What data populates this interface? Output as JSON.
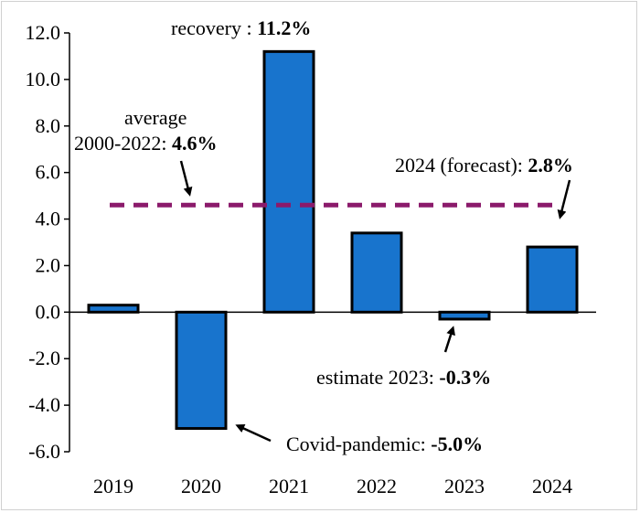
{
  "chart_data": {
    "type": "bar",
    "categories": [
      "2019",
      "2020",
      "2021",
      "2022",
      "2023",
      "2024"
    ],
    "values": [
      0.3,
      -5.0,
      11.2,
      3.4,
      -0.3,
      2.8
    ],
    "ylim": [
      -6.0,
      12.0
    ],
    "yticks": [
      "12.0",
      "10.0",
      "8.0",
      "6.0",
      "4.0",
      "2.0",
      "0.0",
      "-2.0",
      "-4.0",
      "-6.0"
    ],
    "reference_line": {
      "value": 4.6,
      "style": "dashed",
      "color": "#8B1A6B"
    },
    "bar_color": "#1874CD",
    "grid": false,
    "annotations": {
      "recovery": {
        "label": "recovery : ",
        "value": "11.2%"
      },
      "average_1": "average",
      "average_2": "2000-2022: ",
      "average_value": "4.6%",
      "forecast": {
        "label": "2024 (forecast): ",
        "value": "2.8%"
      },
      "estimate": {
        "label": "estimate 2023: ",
        "value": "-0.3%"
      },
      "covid": {
        "label": "Covid-pandemic: ",
        "value": "-5.0%"
      }
    }
  }
}
